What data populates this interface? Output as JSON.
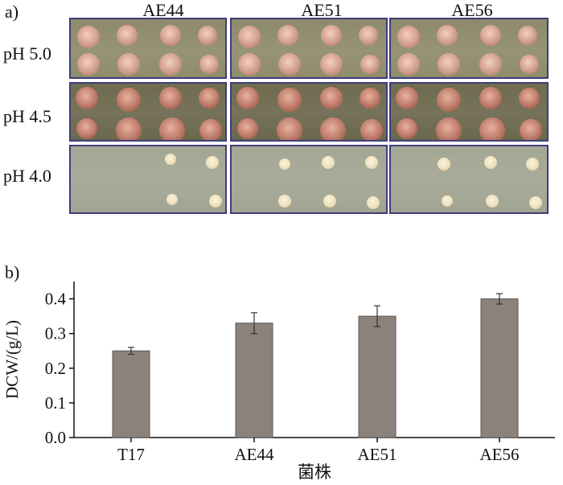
{
  "panel_a": {
    "label": "a)",
    "strains": [
      "AE44",
      "AE51",
      "AE56"
    ],
    "rows": [
      {
        "label": "pH 5.0",
        "condition": "ph50"
      },
      {
        "label": "pH 4.5",
        "condition": "ph45"
      },
      {
        "label": "pH 4.0",
        "condition": "ph40"
      }
    ],
    "colors": {
      "frame": "#3f3d7a"
    }
  },
  "panel_b": {
    "label": "b)"
  },
  "chart_data": {
    "type": "bar",
    "categories": [
      "T17",
      "AE44",
      "AE51",
      "AE56"
    ],
    "values": [
      0.25,
      0.33,
      0.35,
      0.4
    ],
    "errors": [
      0.01,
      0.03,
      0.03,
      0.015
    ],
    "xlabel": "菌株",
    "ylabel": "DCW/(g/L)",
    "ylim": [
      0,
      0.45
    ],
    "yticks": [
      "0.0",
      "0.1",
      "0.2",
      "0.3",
      "0.4"
    ],
    "grid": false,
    "colors": {
      "bar": "#8c827c",
      "bar_edge": "#5f5652",
      "axis": "#111111"
    }
  }
}
